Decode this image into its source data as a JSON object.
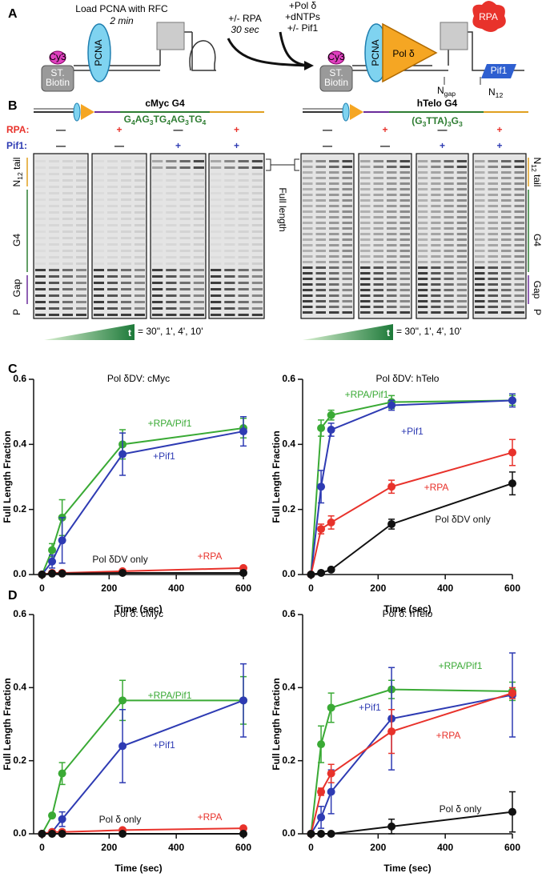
{
  "panels": {
    "a": "A",
    "b": "B",
    "c": "C",
    "d": "D"
  },
  "panel_a": {
    "load": "Load PCNA with RFC",
    "load_time": "2 min",
    "rpa_step": "+/- RPA",
    "rpa_time": "30 sec",
    "pol_step": "+Pol δ",
    "dntp_step": "+dNTPs",
    "pif1_step": "+/- Pif1",
    "pcna": "PCNA",
    "biotin": [
      "ST.",
      "Biotin"
    ],
    "cy3": "Cy3",
    "pol": "Pol δ",
    "rpa": "RPA",
    "pif1": "Pif1",
    "ngap": [
      "N",
      "gap"
    ],
    "n12": [
      "N",
      "12"
    ]
  },
  "panel_b": {
    "cmyc_title": "cMyc G4",
    "cmyc_sequence": [
      "G",
      "4",
      "AG",
      "3",
      "TG",
      "4",
      "AG",
      "3",
      "TG",
      "4"
    ],
    "htelo_title": "hTelo G4",
    "htelo_sequence": [
      "(G",
      "3",
      "TTA)",
      "3",
      "G",
      "3"
    ],
    "rpa_label": "RPA:",
    "pif1_label": "Pif1:",
    "rpa_signs": [
      "—",
      "+",
      "—",
      "+",
      "—",
      "+",
      "—",
      "+"
    ],
    "pif1_signs": [
      "—",
      "—",
      "+",
      "+",
      "—",
      "—",
      "+",
      "+"
    ],
    "tail_label": [
      "N",
      "12",
      " tail"
    ],
    "g4_label": "G4",
    "gap_label": "Gap",
    "primer_label": "P",
    "full_length": "Full length",
    "time_symbol": "t",
    "time_points": "= 30\", 1', 4', 10'"
  },
  "chart_data": [
    {
      "type": "line",
      "title": "Pol δDV: cMyc",
      "xlabel": "Time (sec)",
      "ylabel": "Full Length Fraction",
      "x": [
        0,
        30,
        60,
        240,
        600
      ],
      "xlim": [
        -25,
        600
      ],
      "xticks": [
        0,
        200,
        400,
        600
      ],
      "ylim": [
        0,
        0.6
      ],
      "yticks": [
        {
          "value": 0,
          "label": "0.0"
        },
        0.2,
        0.4,
        0.6
      ],
      "series": [
        {
          "name": "+RPA/Pif1",
          "color": "#3aaa35",
          "values": [
            0,
            0.075,
            0.175,
            0.4,
            0.45
          ],
          "errors": [
            0,
            0.02,
            0.055,
            0.045,
            0.03
          ]
        },
        {
          "name": "+Pif1",
          "color": "#2e3bb3",
          "values": [
            0,
            0.04,
            0.105,
            0.37,
            0.44
          ],
          "errors": [
            0,
            0.02,
            0.07,
            0.065,
            0.045
          ]
        },
        {
          "name": "+RPA",
          "color": "#e8322b",
          "values": [
            0,
            0.005,
            0.005,
            0.01,
            0.02
          ],
          "errors": [
            0,
            0,
            0,
            0.003,
            0.003
          ]
        },
        {
          "name": "Pol δDV only",
          "color": "#111111",
          "values": [
            0,
            0.003,
            0.003,
            0.005,
            0.005
          ],
          "errors": [
            0,
            0,
            0,
            0.002,
            0.002
          ]
        }
      ]
    },
    {
      "type": "line",
      "title": "Pol δDV: hTelo",
      "xlabel": "Time (sec)",
      "ylabel": "Full Length Fraction",
      "x": [
        0,
        30,
        60,
        240,
        600
      ],
      "xlim": [
        -25,
        600
      ],
      "xticks": [
        0,
        200,
        400,
        600
      ],
      "ylim": [
        0,
        0.6
      ],
      "yticks": [
        {
          "value": 0,
          "label": "0.0"
        },
        0.2,
        0.4,
        0.6
      ],
      "series": [
        {
          "name": "+RPA/Pif1",
          "color": "#3aaa35",
          "values": [
            0,
            0.45,
            0.49,
            0.53,
            0.535
          ],
          "errors": [
            0,
            0.025,
            0.015,
            0.02,
            0.015
          ]
        },
        {
          "name": "+Pif1",
          "color": "#2e3bb3",
          "values": [
            0,
            0.27,
            0.445,
            0.52,
            0.535
          ],
          "errors": [
            0,
            0.05,
            0.02,
            0.015,
            0.02
          ]
        },
        {
          "name": "+RPA",
          "color": "#e8322b",
          "values": [
            0,
            0.14,
            0.16,
            0.27,
            0.375
          ],
          "errors": [
            0,
            0.015,
            0.02,
            0.02,
            0.04
          ]
        },
        {
          "name": "Pol δDV only",
          "color": "#111111",
          "values": [
            0,
            0.005,
            0.015,
            0.155,
            0.28
          ],
          "errors": [
            0,
            0,
            0.005,
            0.015,
            0.035
          ]
        }
      ]
    },
    {
      "type": "line",
      "title": "Pol δ: cMyc",
      "xlabel": "Time (sec)",
      "ylabel": "Full Length Fraction",
      "x": [
        0,
        30,
        60,
        240,
        600
      ],
      "xlim": [
        -25,
        600
      ],
      "xticks": [
        0,
        200,
        400,
        600
      ],
      "ylim": [
        0,
        0.6
      ],
      "yticks": [
        {
          "value": 0,
          "label": "0.0"
        },
        0.2,
        0.4,
        0.6
      ],
      "series": [
        {
          "name": "+RPA/Pif1",
          "color": "#3aaa35",
          "values": [
            0,
            0.05,
            0.165,
            0.365,
            0.365
          ],
          "errors": [
            0,
            0.005,
            0.03,
            0.055,
            0.065
          ]
        },
        {
          "name": "+Pif1",
          "color": "#2e3bb3",
          "values": [
            0,
            0.005,
            0.04,
            0.24,
            0.365
          ],
          "errors": [
            0,
            0,
            0.02,
            0.1,
            0.1
          ]
        },
        {
          "name": "+RPA",
          "color": "#e8322b",
          "values": [
            0,
            0.005,
            0.005,
            0.01,
            0.015
          ],
          "errors": [
            0,
            0,
            0,
            0.002,
            0.003
          ]
        },
        {
          "name": "Pol δ only",
          "color": "#111111",
          "values": [
            0,
            0,
            0,
            0,
            0
          ],
          "errors": [
            0,
            0,
            0,
            0,
            0
          ]
        }
      ]
    },
    {
      "type": "line",
      "title": "Pol δ: hTelo",
      "xlabel": "Time (sec)",
      "ylabel": "Full Length Fraction",
      "x": [
        0,
        30,
        60,
        240,
        600
      ],
      "xlim": [
        -25,
        600
      ],
      "xticks": [
        0,
        200,
        400,
        600
      ],
      "ylim": [
        0,
        0.6
      ],
      "yticks": [
        {
          "value": 0,
          "label": "0.0"
        },
        0.2,
        0.4,
        0.6
      ],
      "series": [
        {
          "name": "+RPA/Pif1",
          "color": "#3aaa35",
          "values": [
            0,
            0.245,
            0.345,
            0.395,
            0.39
          ],
          "errors": [
            0,
            0.05,
            0.04,
            0.025,
            0.025
          ]
        },
        {
          "name": "+Pif1",
          "color": "#2e3bb3",
          "values": [
            0,
            0.045,
            0.115,
            0.315,
            0.38
          ],
          "errors": [
            0,
            0.03,
            0.06,
            0.14,
            0.115
          ]
        },
        {
          "name": "+RPA",
          "color": "#e8322b",
          "values": [
            0,
            0.115,
            0.165,
            0.28,
            0.385
          ],
          "errors": [
            0,
            0.01,
            0.025,
            0.06,
            0.015
          ]
        },
        {
          "name": "Pol δ only",
          "color": "#111111",
          "values": [
            0,
            0,
            0,
            0.02,
            0.06
          ],
          "errors": [
            0,
            0,
            0,
            0.02,
            0.055
          ]
        }
      ]
    }
  ]
}
